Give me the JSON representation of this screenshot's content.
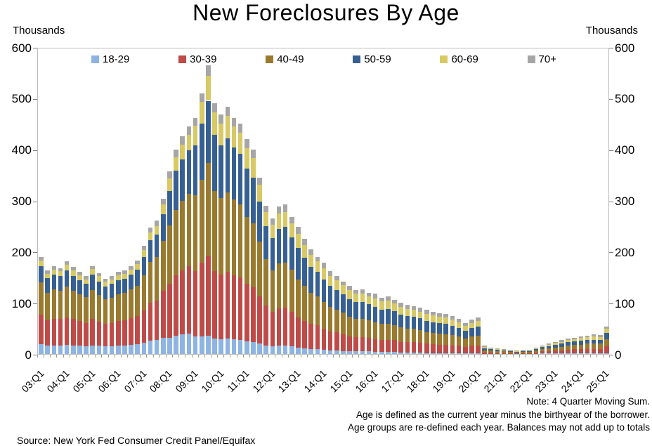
{
  "title": "New Foreclosures By Age",
  "y_axis_unit_left": "Thousands",
  "y_axis_unit_right": "Thousands",
  "notes": {
    "line1": "Note: 4 Quarter Moving Sum.",
    "line2": "Age is defined as the current year minus the birthyear of the borrower.",
    "line3": "Age groups are re-defined each year. Balances may not add up to totals"
  },
  "source": "Source: New York Fed Consumer Credit Panel/Equifax",
  "chart_data": {
    "type": "bar",
    "stacked": true,
    "title": "New Foreclosures By Age",
    "ylabel": "Thousands",
    "ylim": [
      0,
      600
    ],
    "y_step": 100,
    "grid": false,
    "legend_position": "top-inside",
    "x_year_labels": [
      "03:Q1",
      "04:Q1",
      "05:Q1",
      "06:Q1",
      "07:Q1",
      "08:Q1",
      "09:Q1",
      "10:Q1",
      "11:Q1",
      "12:Q1",
      "13:Q1",
      "14:Q1",
      "15:Q1",
      "16:Q1",
      "17:Q1",
      "18:Q1",
      "19:Q1",
      "20:Q1",
      "21:Q1",
      "22:Q1",
      "23:Q1",
      "24:Q1",
      "25:Q1"
    ],
    "categories": [
      "03:Q1",
      "03:Q2",
      "03:Q3",
      "03:Q4",
      "04:Q1",
      "04:Q2",
      "04:Q3",
      "04:Q4",
      "05:Q1",
      "05:Q2",
      "05:Q3",
      "05:Q4",
      "06:Q1",
      "06:Q2",
      "06:Q3",
      "06:Q4",
      "07:Q1",
      "07:Q2",
      "07:Q3",
      "07:Q4",
      "08:Q1",
      "08:Q2",
      "08:Q3",
      "08:Q4",
      "09:Q1",
      "09:Q2",
      "09:Q3",
      "09:Q4",
      "10:Q1",
      "10:Q2",
      "10:Q3",
      "10:Q4",
      "11:Q1",
      "11:Q2",
      "11:Q3",
      "11:Q4",
      "12:Q1",
      "12:Q2",
      "12:Q3",
      "12:Q4",
      "13:Q1",
      "13:Q2",
      "13:Q3",
      "13:Q4",
      "14:Q1",
      "14:Q2",
      "14:Q3",
      "14:Q4",
      "15:Q1",
      "15:Q2",
      "15:Q3",
      "15:Q4",
      "16:Q1",
      "16:Q2",
      "16:Q3",
      "16:Q4",
      "17:Q1",
      "17:Q2",
      "17:Q3",
      "17:Q4",
      "18:Q1",
      "18:Q2",
      "18:Q3",
      "18:Q4",
      "19:Q1",
      "19:Q2",
      "19:Q3",
      "19:Q4",
      "20:Q1",
      "20:Q2",
      "20:Q3",
      "20:Q4",
      "21:Q1",
      "21:Q2",
      "21:Q3",
      "21:Q4",
      "22:Q1",
      "22:Q2",
      "22:Q3",
      "22:Q4",
      "23:Q1",
      "23:Q2",
      "23:Q3",
      "23:Q4",
      "24:Q1",
      "24:Q2",
      "24:Q3",
      "24:Q4",
      "25:Q1"
    ],
    "series": [
      {
        "name": "18-29",
        "color": "#8DB4E2",
        "values": [
          19,
          16,
          17,
          17,
          18,
          17,
          16,
          15,
          17,
          16,
          15,
          15,
          17,
          17,
          18,
          19,
          22,
          26,
          27,
          32,
          32,
          36,
          38,
          40,
          34,
          34,
          36,
          30,
          29,
          30,
          29,
          28,
          25,
          24,
          21,
          17,
          15,
          16,
          16,
          15,
          12,
          11,
          10,
          10,
          8,
          7,
          7,
          6,
          5,
          5,
          5,
          5,
          4,
          4,
          4,
          4,
          3,
          3,
          3,
          3,
          2,
          2,
          2,
          2,
          2,
          2,
          1,
          2,
          2,
          0,
          0,
          0,
          0,
          0,
          0,
          0,
          0,
          0,
          1,
          1,
          1,
          1,
          1,
          1,
          1,
          1,
          1,
          1,
          2
        ]
      },
      {
        "name": "30-39",
        "color": "#BE4B48",
        "values": [
          58,
          50,
          52,
          51,
          54,
          51,
          48,
          46,
          51,
          47,
          44,
          45,
          48,
          49,
          52,
          55,
          63,
          74,
          78,
          91,
          105,
          118,
          125,
          131,
          128,
          144,
          156,
          132,
          126,
          131,
          125,
          121,
          113,
          107,
          92,
          78,
          68,
          73,
          74,
          68,
          60,
          54,
          49,
          46,
          41,
          37,
          35,
          33,
          30,
          28,
          28,
          27,
          25,
          24,
          24,
          23,
          21,
          20,
          20,
          19,
          18,
          17,
          16,
          16,
          15,
          14,
          13,
          14,
          15,
          3,
          3,
          2,
          2,
          2,
          1,
          2,
          2,
          3,
          4,
          5,
          6,
          6,
          7,
          8,
          8,
          9,
          9,
          9,
          13
        ]
      },
      {
        "name": "40-49",
        "color": "#9A7A2E",
        "values": [
          63,
          54,
          57,
          55,
          60,
          56,
          53,
          50,
          57,
          52,
          48,
          50,
          52,
          53,
          56,
          59,
          69,
          80,
          85,
          98,
          114,
          128,
          136,
          142,
          148,
          163,
          181,
          157,
          150,
          155,
          148,
          144,
          130,
          124,
          107,
          90,
          81,
          88,
          89,
          82,
          74,
          68,
          61,
          57,
          53,
          48,
          45,
          42,
          38,
          36,
          36,
          34,
          33,
          31,
          31,
          30,
          28,
          26,
          26,
          25,
          23,
          22,
          22,
          21,
          20,
          18,
          16,
          18,
          19,
          4,
          4,
          3,
          3,
          2,
          2,
          2,
          2,
          4,
          5,
          5,
          6,
          7,
          8,
          9,
          9,
          10,
          10,
          10,
          14
        ]
      },
      {
        "name": "50-59",
        "color": "#376092",
        "values": [
          32,
          28,
          29,
          29,
          31,
          29,
          27,
          26,
          30,
          27,
          25,
          27,
          27,
          28,
          29,
          32,
          36,
          42,
          44,
          52,
          68,
          76,
          81,
          85,
          98,
          110,
          122,
          110,
          103,
          106,
          102,
          99,
          94,
          90,
          78,
          65,
          62,
          68,
          69,
          63,
          61,
          55,
          50,
          47,
          44,
          41,
          38,
          36,
          34,
          32,
          32,
          31,
          30,
          28,
          29,
          27,
          25,
          25,
          24,
          23,
          22,
          21,
          20,
          20,
          18,
          17,
          15,
          17,
          17,
          4,
          3,
          3,
          2,
          2,
          2,
          2,
          2,
          3,
          4,
          4,
          5,
          6,
          7,
          7,
          8,
          8,
          8,
          8,
          12
        ]
      },
      {
        "name": "60-69",
        "color": "#D8C964",
        "values": [
          11,
          9,
          10,
          10,
          11,
          10,
          10,
          9,
          11,
          10,
          9,
          9,
          10,
          10,
          10,
          11,
          13,
          15,
          16,
          19,
          24,
          27,
          29,
          30,
          38,
          42,
          49,
          43,
          42,
          43,
          41,
          41,
          40,
          38,
          33,
          28,
          27,
          30,
          30,
          28,
          28,
          25,
          23,
          21,
          22,
          20,
          19,
          17,
          18,
          17,
          17,
          16,
          17,
          16,
          16,
          15,
          15,
          14,
          14,
          13,
          13,
          13,
          13,
          12,
          12,
          11,
          10,
          10,
          11,
          3,
          2,
          2,
          1,
          1,
          1,
          1,
          1,
          2,
          2,
          3,
          4,
          4,
          4,
          4,
          5,
          5,
          6,
          5,
          8
        ]
      },
      {
        "name": "70+",
        "color": "#A6A6A6",
        "values": [
          7,
          6,
          7,
          6,
          7,
          7,
          6,
          6,
          6,
          6,
          6,
          6,
          6,
          6,
          7,
          7,
          8,
          10,
          11,
          11,
          14,
          15,
          16,
          17,
          16,
          17,
          21,
          18,
          18,
          19,
          17,
          17,
          18,
          17,
          14,
          12,
          12,
          13,
          14,
          12,
          13,
          12,
          12,
          9,
          10,
          9,
          8,
          8,
          8,
          7,
          9,
          7,
          9,
          7,
          8,
          7,
          8,
          8,
          6,
          7,
          8,
          7,
          7,
          7,
          7,
          6,
          6,
          6,
          7,
          2,
          1,
          1,
          1,
          1,
          1,
          1,
          1,
          1,
          1,
          2,
          2,
          3,
          3,
          3,
          3,
          3,
          4,
          4,
          5
        ]
      }
    ]
  }
}
